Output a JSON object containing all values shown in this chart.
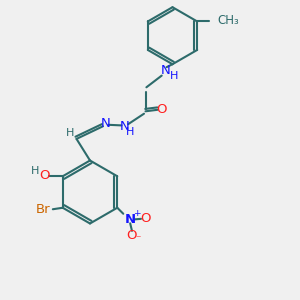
{
  "bg_color": "#f0f0f0",
  "bond_color": "#2d6b6b",
  "N_color": "#1414ff",
  "O_color": "#ff2020",
  "Br_color": "#cc6600",
  "line_width": 1.5,
  "font_size": 9.5,
  "xlim": [
    0,
    10
  ],
  "ylim": [
    0,
    10
  ]
}
